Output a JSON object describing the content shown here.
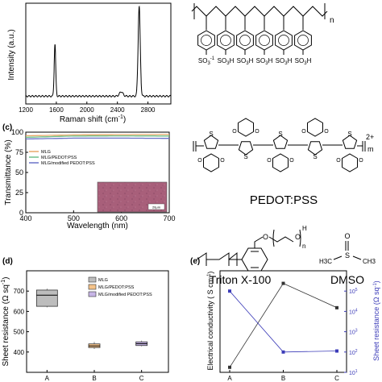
{
  "chart_data": [
    {
      "panel": "",
      "type": "line",
      "xlabel": "Raman shift (cm",
      "xlabel_sup": "-1",
      "xlabel_end": ")",
      "ylabel": "Intensity (a.u.)",
      "xlim": [
        1200,
        3100
      ],
      "xticks": [
        1200,
        1600,
        2000,
        2400,
        2800
      ],
      "peaks": [
        {
          "x": 1582,
          "height": 0.58,
          "width": 10
        },
        {
          "x": 2450,
          "height": 0.05,
          "width": 22
        },
        {
          "x": 2685,
          "height": 1.0,
          "width": 14
        }
      ]
    },
    {
      "panel": "(c)",
      "type": "line",
      "xlabel": "Wavelength (nm)",
      "ylabel": "Transmittance (%)",
      "xlim": [
        400,
        700
      ],
      "ylim": [
        0,
        100
      ],
      "xticks": [
        400,
        500,
        600,
        700
      ],
      "yticks": [
        0,
        25,
        50,
        75,
        100
      ],
      "ytick_labels": [
        "0",
        "25",
        "50",
        "75",
        "100"
      ],
      "legend_position": "top-left",
      "series": [
        {
          "name": "MLG",
          "color": "#e9a96a",
          "x": [
            400,
            500,
            600,
            700
          ],
          "y": [
            95.5,
            96.6,
            96.9,
            97.1
          ]
        },
        {
          "name": "MLG/PEDOT:PSS",
          "color": "#6fc08a",
          "x": [
            400,
            500,
            600,
            700
          ],
          "y": [
            93.6,
            95.2,
            95.4,
            95.2
          ]
        },
        {
          "name": "MLG/modified PEDOT:PSS",
          "color": "#6a72c8",
          "x": [
            400,
            500,
            600,
            700
          ],
          "y": [
            91.6,
            92.6,
            92.6,
            92.3
          ]
        }
      ],
      "inset_scale_label": "20μm"
    },
    {
      "panel": "(d)",
      "type": "box",
      "ylabel": "Sheet resistance (Ω sq",
      "ylabel_sup": "-1",
      "ylabel_end": ")",
      "categories": [
        "A",
        "B",
        "C"
      ],
      "ylim": [
        300,
        800
      ],
      "yticks": [
        400,
        500,
        600,
        700
      ],
      "legend_position": "top-right",
      "boxes": [
        {
          "name": "MLG",
          "q1": 625,
          "median": 680,
          "q3": 705,
          "min": 620,
          "max": 712,
          "color": "#bdbdbd"
        },
        {
          "name": "MLG/PEDOT:PSS",
          "q1": 422,
          "median": 430,
          "q3": 440,
          "min": 415,
          "max": 450,
          "color": "#f5c38a"
        },
        {
          "name": "MLG/modified PEDOT:PSS",
          "q1": 432,
          "median": 441,
          "q3": 450,
          "min": 428,
          "max": 456,
          "color": "#c7b5e6"
        }
      ]
    },
    {
      "panel": "(e)",
      "type": "line",
      "ylabel_left": "Electrical conductivity ( S cm",
      "ylabel_left_sup": "-1",
      "ylabel_left_end": ")",
      "ylabel_right": "Sheet resistance (Ω sq",
      "ylabel_right_sup": "-1",
      "ylabel_right_end": ")",
      "categories": [
        "A",
        "B",
        "C"
      ],
      "ylim_left": [
        0,
        1
      ],
      "ylim_right_log": [
        1,
        6
      ],
      "yticks_right": [
        "10",
        "10",
        "10",
        "10",
        "10"
      ],
      "yticks_right_exp": [
        "1",
        "2",
        "3",
        "4",
        "5"
      ],
      "series": [
        {
          "name": "Electrical conductivity",
          "axis": "left",
          "color": "#333333",
          "values": [
            0.02,
            0.95,
            0.68
          ]
        },
        {
          "name": "Sheet resistance",
          "axis": "right",
          "color": "#3b3bb8",
          "values": [
            5.0,
            2.0,
            2.05
          ]
        }
      ]
    }
  ],
  "structures": {
    "pss_subscript": "n",
    "pss_groups": [
      "SO3-1",
      "SO3H",
      "SO3H",
      "SO3H",
      "SO3H",
      "SO3H"
    ],
    "pedot_charge": "2+",
    "pedot_subscript": "m",
    "pedot_pss_label": "PEDOT:PSS",
    "triton_label": "Triton X-100",
    "triton_subscript": "n",
    "triton_h": "H",
    "dmso_label": "DMSO",
    "dmso_left": "H3C",
    "dmso_right": "CH3",
    "dmso_s": "S",
    "dmso_o": "O",
    "thiophene_s": "S",
    "ring_o": "O"
  }
}
